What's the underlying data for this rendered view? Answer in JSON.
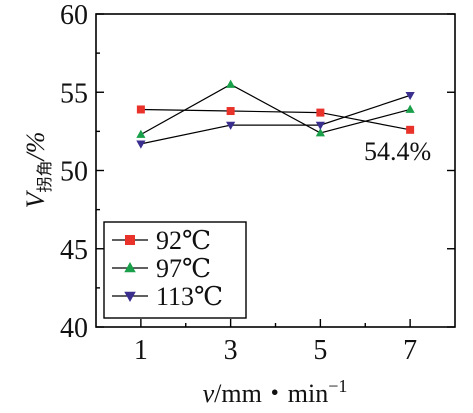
{
  "chart_data": {
    "type": "line",
    "x": [
      1,
      3,
      5,
      7
    ],
    "xticks": [
      "1",
      "3",
      "5",
      "7"
    ],
    "xlim": [
      0,
      8
    ],
    "ylim": [
      40,
      60
    ],
    "yticks": [
      "40",
      "45",
      "50",
      "55",
      "60"
    ],
    "xlabel": {
      "main": "v",
      "unit": "/mm・min",
      "superscript": "−1"
    },
    "ylabel": {
      "main": "V",
      "subscript": "拐角",
      "unit": "/%"
    },
    "series": [
      {
        "name": "92℃",
        "values": [
          53.9,
          53.8,
          53.7,
          52.6
        ],
        "color": "#e8322a",
        "marker": "square"
      },
      {
        "name": "97℃",
        "values": [
          52.3,
          55.5,
          52.4,
          53.9
        ],
        "color": "#1aa04a",
        "marker": "triangle-up"
      },
      {
        "name": "113℃",
        "values": [
          51.7,
          52.9,
          52.9,
          54.8
        ],
        "color": "#3a2f8e",
        "marker": "triangle-down"
      }
    ],
    "annotation": "54.4%",
    "legend_position": "bottom-left",
    "grid": false
  }
}
